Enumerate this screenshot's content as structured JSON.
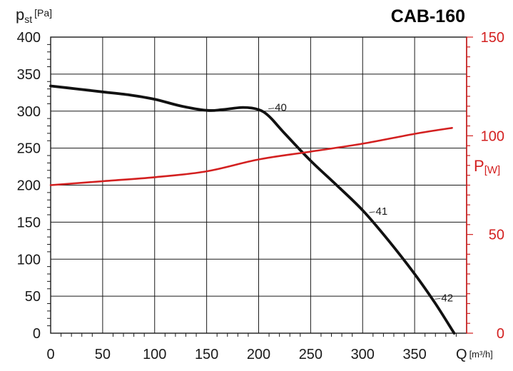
{
  "chart_data": {
    "type": "line",
    "title": "CAB-160",
    "xlabel": {
      "main": "Q",
      "unit": "[m³/h]"
    },
    "ylabel_left": {
      "main": "p",
      "sub": "st",
      "unit": "[Pa]"
    },
    "ylabel_right": {
      "main": "P",
      "unit": "[W]"
    },
    "xlim": [
      0,
      400
    ],
    "ylim_left": [
      0,
      400
    ],
    "ylim_right": [
      0,
      150
    ],
    "x_ticks": [
      "0",
      "50",
      "100",
      "150",
      "200",
      "250",
      "300",
      "350"
    ],
    "y_ticks_left": [
      "0",
      "50",
      "100",
      "150",
      "200",
      "250",
      "300",
      "350",
      "400"
    ],
    "y_ticks_right": [
      "0",
      "50",
      "100",
      "150"
    ],
    "grid": true,
    "colors": {
      "pressure": "#111111",
      "power": "#d32020",
      "grid": "#1a1a1a"
    },
    "series": [
      {
        "axis": "left",
        "points": [
          [
            0,
            334
          ],
          [
            25,
            330
          ],
          [
            50,
            326
          ],
          [
            75,
            322
          ],
          [
            100,
            316
          ],
          [
            125,
            307
          ],
          [
            150,
            301
          ],
          [
            165,
            302
          ],
          [
            185,
            305
          ],
          [
            200,
            302
          ],
          [
            210,
            293
          ],
          [
            225,
            270
          ],
          [
            250,
            233
          ],
          [
            275,
            200
          ],
          [
            300,
            166
          ],
          [
            325,
            125
          ],
          [
            350,
            80
          ],
          [
            370,
            40
          ],
          [
            388,
            0
          ]
        ]
      },
      {
        "axis": "right",
        "points": [
          [
            0,
            75
          ],
          [
            50,
            77
          ],
          [
            100,
            79
          ],
          [
            150,
            82
          ],
          [
            200,
            88
          ],
          [
            250,
            92
          ],
          [
            300,
            96
          ],
          [
            350,
            101
          ],
          [
            386,
            104
          ]
        ]
      }
    ],
    "annotations": [
      {
        "text": "40",
        "x": 208,
        "y": 302
      },
      {
        "text": "41",
        "x": 305,
        "y": 162
      },
      {
        "text": "42",
        "x": 368,
        "y": 45
      }
    ]
  }
}
